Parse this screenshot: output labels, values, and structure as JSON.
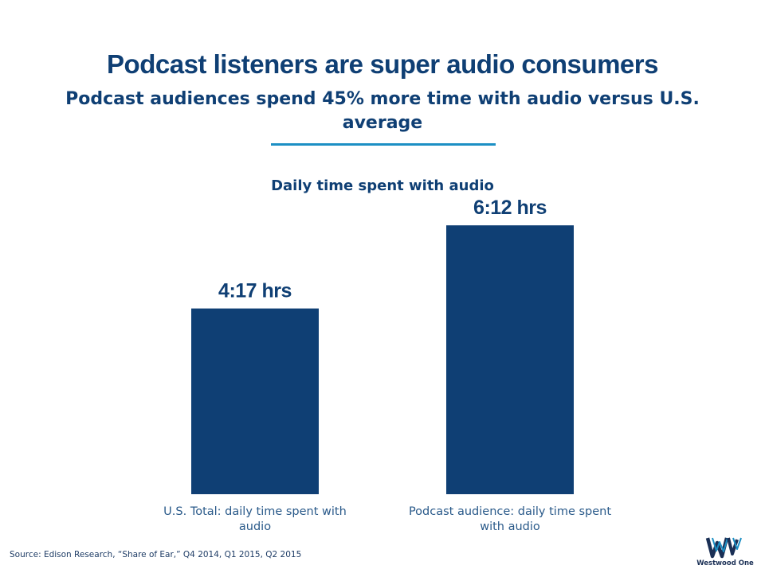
{
  "title": "Podcast listeners are super audio consumers",
  "subtitle": "Podcast audiences spend 45% more time with audio versus U.S. average",
  "chart_data": {
    "type": "bar",
    "title": "Daily time spent with audio",
    "categories": [
      "U.S. Total: daily time spent with audio",
      "Podcast audience: daily time spent with audio"
    ],
    "values": [
      4.283,
      6.2
    ],
    "value_labels": [
      "4:17 hrs",
      "6:12 hrs"
    ],
    "unit": "hours",
    "ylim": [
      0,
      6.9
    ],
    "xlabel": "",
    "ylabel": "",
    "grid": false,
    "bar_color": "#0f3f74"
  },
  "source": "Source: Edison Research, “Share of Ear,” Q4 2014, Q1 2015, Q2 2015",
  "logo": {
    "text": "Westwood One",
    "accent": "#1c8fc4",
    "icon": "westwood-one-logo"
  },
  "colors": {
    "primary": "#0f3f74",
    "accent": "#1c8fc4",
    "label": "#2a5a8a"
  }
}
